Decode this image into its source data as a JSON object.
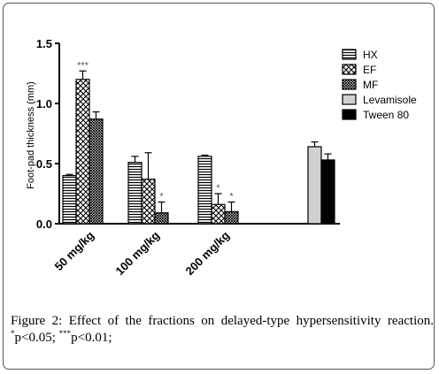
{
  "chart_data": {
    "type": "bar",
    "ylabel": "Foot-pad thickness (mm)",
    "xlabel": "",
    "ylim": [
      0,
      1.5
    ],
    "yticks": [
      0.0,
      0.5,
      1.0,
      1.5
    ],
    "ytick_labels": [
      "0.0",
      "0.5",
      "1.0",
      "1.5"
    ],
    "categories": [
      "50 mg/kg",
      "100 mg/kg",
      "200 mg/kg"
    ],
    "series": [
      {
        "name": "HX",
        "pattern": "hlines",
        "values": [
          0.4,
          0.51,
          0.56
        ],
        "errors": [
          0.01,
          0.05,
          0.01
        ],
        "sig": [
          "",
          "",
          ""
        ]
      },
      {
        "name": "EF",
        "pattern": "crosshatch",
        "values": [
          1.2,
          0.37,
          0.16
        ],
        "errors": [
          0.07,
          0.22,
          0.09
        ],
        "sig": [
          "***",
          "",
          "*"
        ]
      },
      {
        "name": "MF",
        "pattern": "dense-crosshatch",
        "values": [
          0.87,
          0.09,
          0.1
        ],
        "errors": [
          0.06,
          0.09,
          0.08
        ],
        "sig": [
          "",
          "*",
          "*"
        ]
      }
    ],
    "controls": [
      {
        "name": "Levamisole",
        "pattern": "gray",
        "value": 0.64,
        "error": 0.04
      },
      {
        "name": "Tween 80",
        "pattern": "black",
        "value": 0.53,
        "error": 0.05
      }
    ],
    "legend_position": "right",
    "colors": {
      "gray_fill": "#d0d0d0",
      "black_fill": "#000000",
      "outline": "#000000"
    }
  },
  "caption": {
    "label": "Figure 2:",
    "text_main": " Effect of the fractions on delayed-type hypersensitivity reaction. ",
    "sup1": "*",
    "p1": "p<0.05; ",
    "sup2": "***",
    "p2": "p<0.01;"
  }
}
